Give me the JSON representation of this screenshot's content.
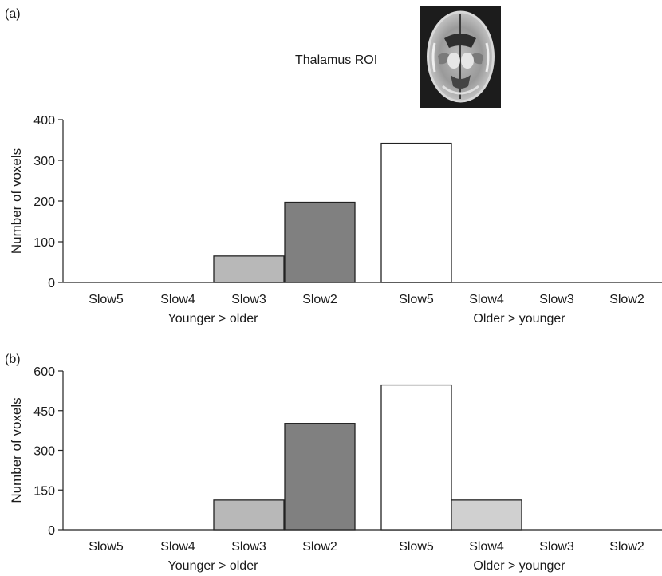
{
  "roi_label": "Thalamus ROI",
  "roi_image_icon": "brain-axial-slice-icon",
  "chart_data": [
    {
      "type": "bar",
      "panel_label": "(a)",
      "ylabel": "Number of voxels",
      "ylim": [
        0,
        400
      ],
      "yticks": [
        "0",
        "100",
        "200",
        "300",
        "400"
      ],
      "ytick_values": [
        0,
        100,
        200,
        300,
        400
      ],
      "categories": [
        "Slow5",
        "Slow4",
        "Slow3",
        "Slow2",
        "Slow5",
        "Slow4",
        "Slow3",
        "Slow2"
      ],
      "values": [
        0,
        0,
        65,
        197,
        342,
        0,
        0,
        0
      ],
      "bar_colors": [
        "#b8b8b8",
        "#b8b8b8",
        "#b8b8b8",
        "#808080",
        "#ffffff",
        "#d0d0d0",
        "#d0d0d0",
        "#d0d0d0"
      ],
      "groups": [
        "Younger > older",
        "Older > younger"
      ],
      "grid": false
    },
    {
      "type": "bar",
      "panel_label": "(b)",
      "ylabel": "Number of voxels",
      "ylim": [
        0,
        600
      ],
      "yticks": [
        "0",
        "150",
        "300",
        "450",
        "600"
      ],
      "ytick_values": [
        0,
        150,
        300,
        450,
        600
      ],
      "categories": [
        "Slow5",
        "Slow4",
        "Slow3",
        "Slow2",
        "Slow5",
        "Slow4",
        "Slow3",
        "Slow2"
      ],
      "values": [
        0,
        0,
        112,
        402,
        547,
        112,
        0,
        0
      ],
      "bar_colors": [
        "#b8b8b8",
        "#b8b8b8",
        "#b8b8b8",
        "#808080",
        "#ffffff",
        "#d0d0d0",
        "#d0d0d0",
        "#d0d0d0"
      ],
      "groups": [
        "Younger > older",
        "Older > younger"
      ],
      "grid": false
    }
  ]
}
